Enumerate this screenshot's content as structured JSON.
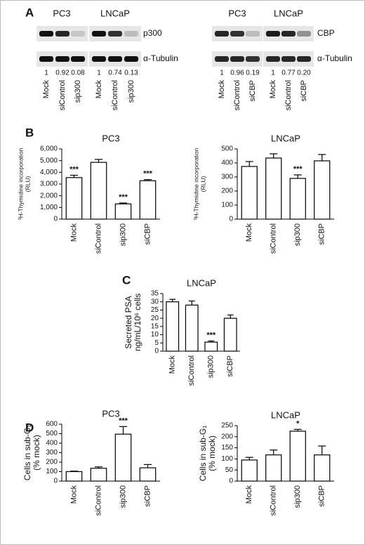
{
  "panel_labels": [
    "A",
    "B",
    "C",
    "D"
  ],
  "blots": [
    {
      "groups": [
        "PC3",
        "LNCaP"
      ],
      "rows": [
        "p300",
        "α-Tubulin"
      ],
      "quantities": [
        "1",
        "0.92",
        "0.08",
        "1",
        "0.74",
        "0.13"
      ],
      "lanes": [
        "Mock",
        "siControl",
        "sip300",
        "Mock",
        "siControl",
        "sip300"
      ]
    },
    {
      "groups": [
        "PC3",
        "LNCaP"
      ],
      "rows": [
        "CBP",
        "α-Tubulin"
      ],
      "quantities": [
        "1",
        "0.96",
        "0.19",
        "1",
        "0.77",
        "0.20"
      ],
      "lanes": [
        "Mock",
        "siControl",
        "siCBP",
        "Mock",
        "siControl",
        "siCBP"
      ]
    }
  ],
  "chart_data": [
    {
      "type": "bar",
      "title": "PC3",
      "y_label": [
        "³H-Thymidine incorporation",
        "(RLU)"
      ],
      "categories": [
        "Mock",
        "siControl",
        "sip300",
        "siCBP"
      ],
      "values": [
        3550,
        4850,
        1300,
        3280
      ],
      "errors": [
        200,
        250,
        80,
        100
      ],
      "significance": [
        "***",
        null,
        "***",
        "***"
      ],
      "color": "#ffffff",
      "edgecolor": "#000000",
      "ylim": [
        0,
        6000
      ],
      "yticks": [
        0,
        {
          "value": 1000,
          "label": "1,000"
        },
        {
          "value": 2000,
          "label": "2,000"
        },
        {
          "value": 3000,
          "label": "3,000"
        },
        {
          "value": 4000,
          "label": "4,000"
        },
        {
          "value": 5000,
          "label": "5,000"
        },
        {
          "value": 6000,
          "label": "6,000"
        }
      ]
    },
    {
      "type": "bar",
      "title": "LNCaP",
      "y_label": [
        "³H-Thymidine incorporation",
        "(RLU)"
      ],
      "categories": [
        "Mock",
        "siControl",
        "sip300",
        "siCBP"
      ],
      "values": [
        375,
        435,
        290,
        415
      ],
      "errors": [
        35,
        30,
        25,
        45
      ],
      "significance": [
        null,
        null,
        "***",
        null
      ],
      "color": "#ffffff",
      "edgecolor": "#000000",
      "ylim": [
        0,
        500
      ],
      "yticks": [
        0,
        100,
        200,
        300,
        400,
        500
      ]
    },
    {
      "type": "bar",
      "title": "LNCaP",
      "y_label": [
        "Secreted PSA",
        "ng/mL/10⁶ cells"
      ],
      "categories": [
        "Mock",
        "siControl",
        "sip300",
        "siCBP"
      ],
      "values": [
        30,
        28,
        5.5,
        20
      ],
      "errors": [
        1.5,
        2.5,
        0.7,
        2
      ],
      "significance": [
        null,
        null,
        "***",
        null
      ],
      "color": "#ffffff",
      "edgecolor": "#000000",
      "ylim": [
        0,
        35
      ],
      "yticks": [
        0,
        5,
        10,
        15,
        20,
        25,
        30,
        35
      ]
    },
    {
      "type": "bar",
      "title": "PC3",
      "y_label": [
        "Cells in sub-G₁",
        "(% mock)"
      ],
      "categories": [
        "Mock",
        "siControl",
        "sip300",
        "siCBP"
      ],
      "values": [
        100,
        135,
        495,
        140
      ],
      "errors": [
        5,
        15,
        80,
        35
      ],
      "significance": [
        null,
        null,
        "***",
        null
      ],
      "color": "#ffffff",
      "edgecolor": "#000000",
      "ylim": [
        0,
        600
      ],
      "yticks": [
        0,
        100,
        200,
        300,
        400,
        500,
        600
      ]
    },
    {
      "type": "bar",
      "title": "LNCaP",
      "y_label": [
        "Cells in sub-G₁",
        "(% mock)"
      ],
      "categories": [
        "Mock",
        "siControl",
        "sip300",
        "siCBP"
      ],
      "values": [
        95,
        118,
        225,
        118
      ],
      "errors": [
        12,
        22,
        8,
        40
      ],
      "significance": [
        null,
        null,
        "*",
        null
      ],
      "color": "#ffffff",
      "edgecolor": "#000000",
      "ylim": [
        0,
        250
      ],
      "yticks": [
        0,
        50,
        100,
        150,
        200,
        250
      ]
    }
  ]
}
